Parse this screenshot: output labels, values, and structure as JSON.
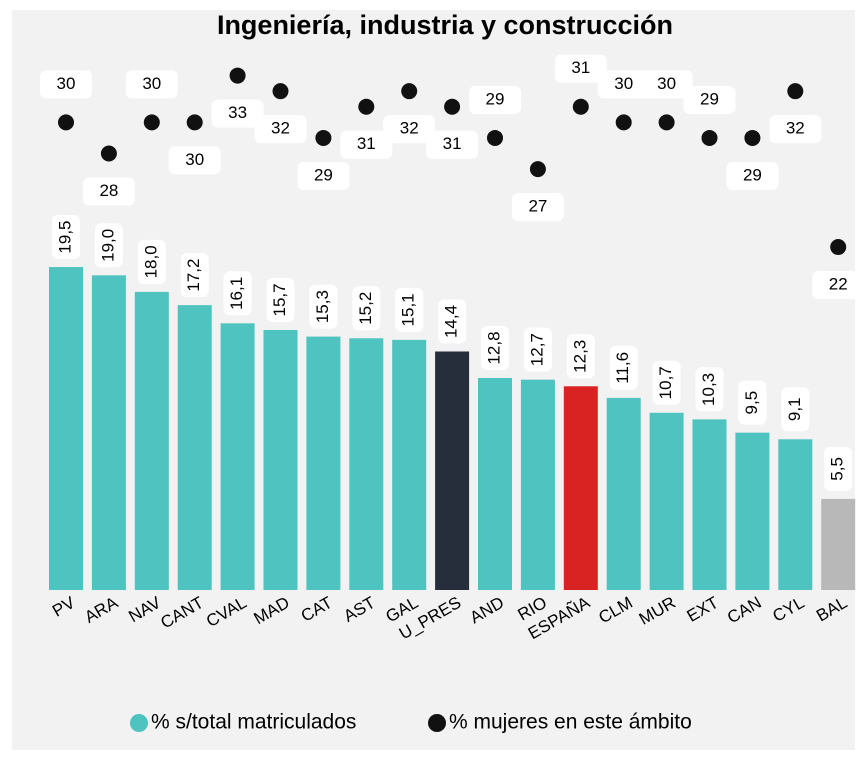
{
  "chart_data": {
    "type": "bar",
    "title": "Ingeniería, industria y construcción",
    "categories": [
      "PV",
      "ARA",
      "NAV",
      "CANT",
      "CVAL",
      "MAD",
      "CAT",
      "AST",
      "GAL",
      "U_PRES",
      "AND",
      "RIO",
      "ESPAÑA",
      "CLM",
      "MUR",
      "EXT",
      "CAN",
      "CYL",
      "BAL"
    ],
    "series": [
      {
        "name": "% s/total matriculados",
        "colors": [
          "#4fc3bf",
          "#4fc3bf",
          "#4fc3bf",
          "#4fc3bf",
          "#4fc3bf",
          "#4fc3bf",
          "#4fc3bf",
          "#4fc3bf",
          "#4fc3bf",
          "#262d3b",
          "#4fc3bf",
          "#4fc3bf",
          "#d92323",
          "#4fc3bf",
          "#4fc3bf",
          "#4fc3bf",
          "#4fc3bf",
          "#4fc3bf",
          "#b8b8b8"
        ],
        "values": [
          19.5,
          19.0,
          18.0,
          17.2,
          16.1,
          15.7,
          15.3,
          15.2,
          15.1,
          14.4,
          12.8,
          12.7,
          12.3,
          11.6,
          10.7,
          10.3,
          9.5,
          9.1,
          5.5
        ],
        "value_labels": [
          "19,5",
          "19,0",
          "18,0",
          "17,2",
          "16,1",
          "15,7",
          "15,3",
          "15,2",
          "15,1",
          "14,4",
          "12,8",
          "12,7",
          "12,3",
          "11,6",
          "10,7",
          "10,3",
          "9,5",
          "9,1",
          "5,5"
        ]
      },
      {
        "name": "% mujeres en este ámbito",
        "type": "scatter",
        "axis": "y2",
        "color": "#111111",
        "values": [
          30,
          28,
          30,
          30,
          33,
          32,
          29,
          31,
          32,
          31,
          29,
          27,
          31,
          30,
          30,
          29,
          29,
          32,
          22
        ]
      }
    ],
    "ylim": [
      0,
      32
    ],
    "y2lim": [
      0,
      34
    ]
  }
}
